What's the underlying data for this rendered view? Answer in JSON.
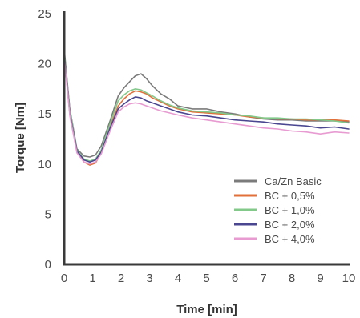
{
  "chart_data": {
    "type": "line",
    "title": "",
    "xlabel": "Time [min]",
    "ylabel": "Torque [Nm]",
    "xlim": [
      0,
      10
    ],
    "ylim": [
      0,
      25
    ],
    "xticks": [
      "0",
      "1",
      "2",
      "3",
      "4",
      "5",
      "6",
      "7",
      "8",
      "9",
      "10"
    ],
    "yticks": [
      "0",
      "5",
      "10",
      "15",
      "20",
      "25"
    ],
    "grid": false,
    "legend_position": "bottom-right",
    "series": [
      {
        "name": "Ca/Zn Basic",
        "color": "#7b7b7b",
        "points": [
          [
            0,
            21.5
          ],
          [
            0.2,
            15.5
          ],
          [
            0.45,
            11.5
          ],
          [
            0.7,
            10.8
          ],
          [
            0.9,
            10.7
          ],
          [
            1.1,
            10.9
          ],
          [
            1.3,
            11.8
          ],
          [
            1.6,
            14.2
          ],
          [
            1.9,
            16.8
          ],
          [
            2.1,
            17.6
          ],
          [
            2.3,
            18.2
          ],
          [
            2.5,
            18.8
          ],
          [
            2.7,
            19.0
          ],
          [
            2.9,
            18.5
          ],
          [
            3.1,
            17.8
          ],
          [
            3.4,
            17.0
          ],
          [
            3.7,
            16.5
          ],
          [
            4.0,
            15.8
          ],
          [
            4.5,
            15.5
          ],
          [
            5.0,
            15.5
          ],
          [
            5.5,
            15.2
          ],
          [
            6.0,
            15.0
          ],
          [
            6.5,
            14.7
          ],
          [
            7.0,
            14.5
          ],
          [
            7.5,
            14.4
          ],
          [
            8.0,
            14.4
          ],
          [
            8.5,
            14.3
          ],
          [
            9.0,
            14.3
          ],
          [
            9.5,
            14.3
          ],
          [
            10.0,
            14.2
          ]
        ]
      },
      {
        "name": "BC + 0,5%",
        "color": "#e2703a",
        "points": [
          [
            0,
            21.0
          ],
          [
            0.2,
            15.2
          ],
          [
            0.45,
            11.2
          ],
          [
            0.7,
            10.2
          ],
          [
            0.9,
            9.9
          ],
          [
            1.1,
            10.1
          ],
          [
            1.3,
            11.1
          ],
          [
            1.6,
            13.6
          ],
          [
            1.9,
            15.8
          ],
          [
            2.1,
            16.5
          ],
          [
            2.3,
            17.0
          ],
          [
            2.5,
            17.3
          ],
          [
            2.7,
            17.2
          ],
          [
            2.9,
            17.0
          ],
          [
            3.1,
            16.6
          ],
          [
            3.4,
            16.2
          ],
          [
            3.7,
            15.8
          ],
          [
            4.0,
            15.5
          ],
          [
            4.5,
            15.2
          ],
          [
            5.0,
            15.1
          ],
          [
            5.5,
            15.0
          ],
          [
            6.0,
            14.9
          ],
          [
            6.5,
            14.7
          ],
          [
            7.0,
            14.6
          ],
          [
            7.5,
            14.5
          ],
          [
            8.0,
            14.5
          ],
          [
            8.5,
            14.4
          ],
          [
            9.0,
            14.4
          ],
          [
            9.5,
            14.4
          ],
          [
            10.0,
            14.3
          ]
        ]
      },
      {
        "name": "BC + 1,0%",
        "color": "#82c98a",
        "points": [
          [
            0,
            21.2
          ],
          [
            0.2,
            15.3
          ],
          [
            0.45,
            11.4
          ],
          [
            0.7,
            10.5
          ],
          [
            0.9,
            10.3
          ],
          [
            1.1,
            10.5
          ],
          [
            1.3,
            11.4
          ],
          [
            1.6,
            13.9
          ],
          [
            1.9,
            16.3
          ],
          [
            2.1,
            16.9
          ],
          [
            2.3,
            17.3
          ],
          [
            2.5,
            17.5
          ],
          [
            2.7,
            17.4
          ],
          [
            2.9,
            17.1
          ],
          [
            3.1,
            16.8
          ],
          [
            3.4,
            16.3
          ],
          [
            3.7,
            15.9
          ],
          [
            4.0,
            15.6
          ],
          [
            4.5,
            15.3
          ],
          [
            5.0,
            15.2
          ],
          [
            5.5,
            15.1
          ],
          [
            6.0,
            14.9
          ],
          [
            6.5,
            14.8
          ],
          [
            7.0,
            14.6
          ],
          [
            7.5,
            14.6
          ],
          [
            8.0,
            14.5
          ],
          [
            8.5,
            14.5
          ],
          [
            9.0,
            14.4
          ],
          [
            9.5,
            14.3
          ],
          [
            10.0,
            14.1
          ]
        ]
      },
      {
        "name": "BC + 2,0%",
        "color": "#4a4690",
        "points": [
          [
            0,
            21.0
          ],
          [
            0.2,
            15.0
          ],
          [
            0.45,
            11.3
          ],
          [
            0.7,
            10.4
          ],
          [
            0.9,
            10.2
          ],
          [
            1.1,
            10.4
          ],
          [
            1.3,
            11.2
          ],
          [
            1.6,
            13.5
          ],
          [
            1.9,
            15.5
          ],
          [
            2.1,
            16.0
          ],
          [
            2.3,
            16.4
          ],
          [
            2.5,
            16.7
          ],
          [
            2.7,
            16.6
          ],
          [
            2.9,
            16.3
          ],
          [
            3.1,
            16.1
          ],
          [
            3.4,
            15.8
          ],
          [
            3.7,
            15.5
          ],
          [
            4.0,
            15.2
          ],
          [
            4.5,
            14.9
          ],
          [
            5.0,
            14.8
          ],
          [
            5.5,
            14.6
          ],
          [
            6.0,
            14.4
          ],
          [
            6.5,
            14.3
          ],
          [
            7.0,
            14.2
          ],
          [
            7.5,
            14.0
          ],
          [
            8.0,
            13.9
          ],
          [
            8.5,
            13.8
          ],
          [
            9.0,
            13.6
          ],
          [
            9.5,
            13.7
          ],
          [
            10.0,
            13.5
          ]
        ]
      },
      {
        "name": "BC + 4,0%",
        "color": "#e79bd1",
        "points": [
          [
            0,
            20.8
          ],
          [
            0.2,
            14.8
          ],
          [
            0.45,
            11.1
          ],
          [
            0.7,
            10.2
          ],
          [
            0.9,
            10.0
          ],
          [
            1.1,
            10.2
          ],
          [
            1.3,
            11.0
          ],
          [
            1.6,
            13.2
          ],
          [
            1.9,
            15.2
          ],
          [
            2.1,
            15.7
          ],
          [
            2.3,
            16.0
          ],
          [
            2.5,
            16.1
          ],
          [
            2.7,
            16.0
          ],
          [
            2.9,
            15.8
          ],
          [
            3.1,
            15.6
          ],
          [
            3.4,
            15.3
          ],
          [
            3.7,
            15.1
          ],
          [
            4.0,
            14.9
          ],
          [
            4.5,
            14.6
          ],
          [
            5.0,
            14.4
          ],
          [
            5.5,
            14.2
          ],
          [
            6.0,
            14.0
          ],
          [
            6.5,
            13.8
          ],
          [
            7.0,
            13.6
          ],
          [
            7.5,
            13.5
          ],
          [
            8.0,
            13.3
          ],
          [
            8.5,
            13.2
          ],
          [
            9.0,
            13.0
          ],
          [
            9.5,
            13.2
          ],
          [
            10.0,
            13.1
          ]
        ]
      }
    ]
  }
}
